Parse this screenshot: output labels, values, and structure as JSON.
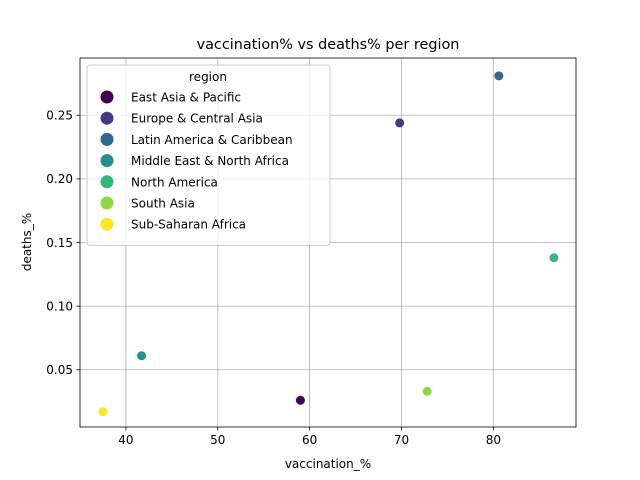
{
  "chart_data": {
    "type": "scatter",
    "title": "vaccination% vs deaths% per region",
    "xlabel": "vaccination_%",
    "ylabel": "deaths_%",
    "xlim": [
      35.0,
      89.0
    ],
    "ylim": [
      0.005,
      0.295
    ],
    "xticks": [
      40,
      50,
      60,
      70,
      80
    ],
    "yticks": [
      0.05,
      0.1,
      0.15,
      0.2,
      0.25
    ],
    "grid": true,
    "legend": {
      "title": "region",
      "placement": "top-left"
    },
    "series": [
      {
        "name": "East Asia & Pacific",
        "color": "#440154",
        "x": [
          59.0
        ],
        "y": [
          0.026
        ]
      },
      {
        "name": "Europe & Central Asia",
        "color": "#443983",
        "x": [
          69.8
        ],
        "y": [
          0.244
        ]
      },
      {
        "name": "Latin America & Caribbean",
        "color": "#31688e",
        "x": [
          80.6
        ],
        "y": [
          0.281
        ]
      },
      {
        "name": "Middle East & North Africa",
        "color": "#21918c",
        "x": [
          41.7
        ],
        "y": [
          0.061
        ]
      },
      {
        "name": "North America",
        "color": "#35b779",
        "x": [
          86.6
        ],
        "y": [
          0.138
        ]
      },
      {
        "name": "South Asia",
        "color": "#90d743",
        "x": [
          72.8
        ],
        "y": [
          0.033
        ]
      },
      {
        "name": "Sub-Saharan Africa",
        "color": "#fde725",
        "x": [
          37.5
        ],
        "y": [
          0.017
        ]
      }
    ]
  }
}
